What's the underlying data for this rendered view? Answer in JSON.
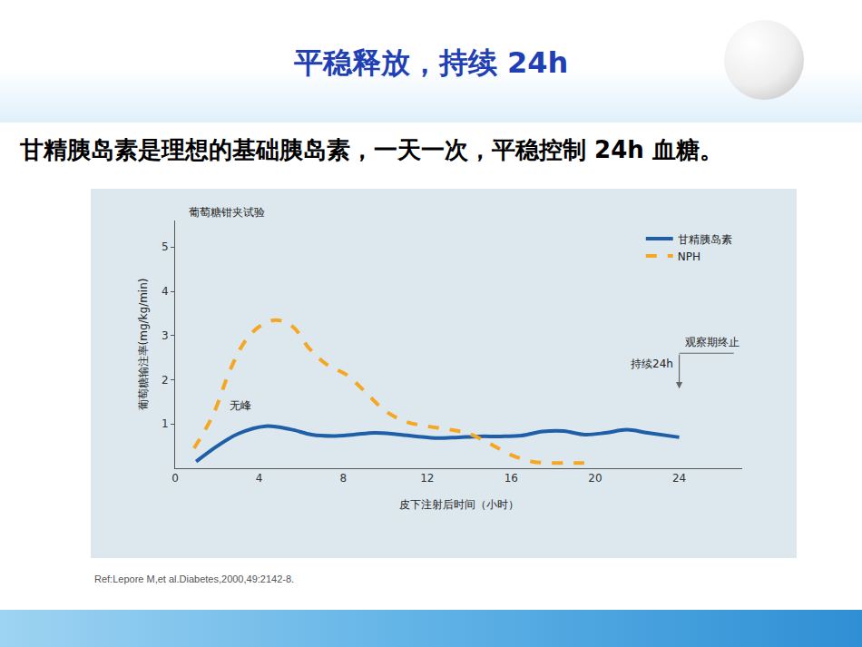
{
  "header": {
    "title": "平稳释放，持续 24h",
    "subtitle": "甘精胰岛素是理想的基础胰岛素，一天一次，平稳控制 24h 血糖。"
  },
  "footer": {
    "reference": "Ref:Lepore M,et al.Diabetes,2000,49:2142-8."
  },
  "chart_data": {
    "type": "line",
    "title": "葡萄糖钳夹试验",
    "x_label": "皮下注射后时间（小时）",
    "y_label": "葡萄糖输注率(mg/kg/min)",
    "xlim": [
      0,
      27
    ],
    "xticks": [
      0,
      4,
      8,
      12,
      16,
      20,
      24
    ],
    "ylim": [
      0,
      5.6
    ],
    "yticks": [
      1,
      2,
      3,
      4,
      5
    ],
    "grid": false,
    "legend": "top-right",
    "series": [
      {
        "name": "甘精胰岛素",
        "color": "#1f5fa8",
        "line_style": "solid",
        "x": [
          1,
          2,
          3,
          4.3,
          5.5,
          6.5,
          7.5,
          8.5,
          9.5,
          10.5,
          11.5,
          12.5,
          13.5,
          14.5,
          15.5,
          16.5,
          17.5,
          18.5,
          19.5,
          20.5,
          21.5,
          22.5,
          24
        ],
        "values": [
          0.15,
          0.5,
          0.78,
          0.95,
          0.88,
          0.76,
          0.73,
          0.76,
          0.8,
          0.77,
          0.72,
          0.68,
          0.7,
          0.72,
          0.72,
          0.74,
          0.83,
          0.84,
          0.76,
          0.8,
          0.87,
          0.8,
          0.7
        ]
      },
      {
        "name": "NPH",
        "color": "#f5a623",
        "line_style": "dash",
        "x": [
          0.9,
          1.8,
          2.6,
          3.3,
          4,
          4.8,
          5.6,
          6.4,
          7.2,
          8.2,
          9,
          10,
          11,
          12,
          13,
          14,
          15,
          16,
          17,
          18,
          19,
          19.8
        ],
        "values": [
          0.45,
          1.2,
          2.2,
          2.85,
          3.2,
          3.35,
          3.2,
          2.7,
          2.35,
          2.1,
          1.75,
          1.3,
          1.05,
          0.95,
          0.88,
          0.78,
          0.55,
          0.3,
          0.15,
          0.12,
          0.12,
          0.12
        ]
      }
    ],
    "annotations": [
      {
        "text": "无峰",
        "x": 3.1,
        "y": 1.42
      },
      {
        "text": "持续24h",
        "x": 23.8,
        "y": 2.35
      },
      {
        "text": "观察期终止",
        "x": 24.2,
        "y": 2.85
      }
    ],
    "arrow": {
      "x": 24,
      "from": 2.6,
      "to": 1.8
    }
  }
}
